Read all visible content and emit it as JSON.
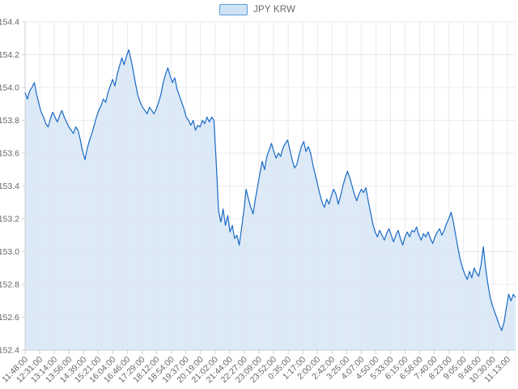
{
  "legend": {
    "label": "JPY KRW"
  },
  "colors": {
    "line": "#1a6ac5",
    "fill": "#dce9f7",
    "legend_fill": "#cfe3f5",
    "legend_border": "#5b9bd5",
    "grid": "#e4e7ea",
    "axis": "#ccd1d6",
    "tick_text": "#626669",
    "legend_text": "#66696c",
    "background": "#ffffff"
  },
  "chart_data": {
    "type": "area",
    "series_name": "JPY KRW",
    "legend_position": "top-center",
    "grid": true,
    "ylim": [
      152.4,
      154.4
    ],
    "y_ticks": [
      152.4,
      152.6,
      152.8,
      153.0,
      153.2,
      153.4,
      153.6,
      153.8,
      154.0,
      154.2,
      154.4
    ],
    "x_tick_labels": [
      "11:48:00",
      "12:31:00",
      "13:14:00",
      "13:56:00",
      "14:39:00",
      "15:21:00",
      "16:04:00",
      "16:46:00",
      "17:29:00",
      "18:12:00",
      "18:54:00",
      "19:37:00",
      "20:19:00",
      "21:02:00",
      "21:44:00",
      "22:27:00",
      "23:09:00",
      "23:52:00",
      "0:35:00",
      "1:17:00",
      "2:00:00",
      "2:42:00",
      "3:25:00",
      "4:07:00",
      "4:50:00",
      "5:33:00",
      "6:15:00",
      "6:58:00",
      "7:40:00",
      "8:23:00",
      "9:05:00",
      "9:48:00",
      "10:30:00",
      "11:13:00"
    ],
    "values": [
      153.97,
      153.93,
      153.98,
      154.0,
      154.03,
      153.96,
      153.9,
      153.85,
      153.82,
      153.78,
      153.76,
      153.81,
      153.85,
      153.82,
      153.79,
      153.83,
      153.86,
      153.82,
      153.79,
      153.76,
      153.74,
      153.72,
      153.76,
      153.74,
      153.68,
      153.61,
      153.56,
      153.63,
      153.68,
      153.72,
      153.77,
      153.82,
      153.86,
      153.89,
      153.93,
      153.91,
      153.97,
      154.01,
      154.05,
      154.01,
      154.08,
      154.13,
      154.18,
      154.14,
      154.19,
      154.23,
      154.17,
      154.1,
      154.02,
      153.95,
      153.91,
      153.88,
      153.86,
      153.84,
      153.88,
      153.86,
      153.84,
      153.87,
      153.91,
      153.96,
      154.03,
      154.08,
      154.12,
      154.07,
      154.03,
      154.06,
      153.99,
      153.95,
      153.91,
      153.87,
      153.82,
      153.8,
      153.77,
      153.8,
      153.74,
      153.77,
      153.76,
      153.8,
      153.78,
      153.82,
      153.79,
      153.82,
      153.8,
      153.55,
      153.25,
      153.18,
      153.26,
      153.16,
      153.22,
      153.12,
      153.16,
      153.08,
      153.1,
      153.04,
      153.14,
      153.25,
      153.38,
      153.32,
      153.27,
      153.23,
      153.32,
      153.4,
      153.48,
      153.55,
      153.5,
      153.58,
      153.62,
      153.66,
      153.61,
      153.57,
      153.6,
      153.58,
      153.63,
      153.66,
      153.68,
      153.62,
      153.56,
      153.51,
      153.53,
      153.59,
      153.64,
      153.67,
      153.61,
      153.64,
      153.6,
      153.53,
      153.47,
      153.41,
      153.35,
      153.3,
      153.27,
      153.32,
      153.29,
      153.34,
      153.38,
      153.35,
      153.29,
      153.34,
      153.4,
      153.45,
      153.49,
      153.45,
      153.4,
      153.35,
      153.31,
      153.35,
      153.38,
      153.36,
      153.39,
      153.31,
      153.24,
      153.17,
      153.12,
      153.09,
      153.13,
      153.1,
      153.07,
      153.11,
      153.14,
      153.1,
      153.06,
      153.1,
      153.13,
      153.08,
      153.04,
      153.09,
      153.12,
      153.09,
      153.13,
      153.12,
      153.15,
      153.1,
      153.07,
      153.11,
      153.09,
      153.12,
      153.08,
      153.05,
      153.09,
      153.12,
      153.14,
      153.1,
      153.13,
      153.17,
      153.2,
      153.24,
      153.18,
      153.1,
      153.02,
      152.95,
      152.9,
      152.86,
      152.83,
      152.88,
      152.84,
      152.9,
      152.87,
      152.85,
      152.92,
      153.03,
      152.9,
      152.8,
      152.72,
      152.67,
      152.63,
      152.59,
      152.55,
      152.52,
      152.57,
      152.66,
      152.74,
      152.7,
      152.74,
      152.72
    ]
  }
}
